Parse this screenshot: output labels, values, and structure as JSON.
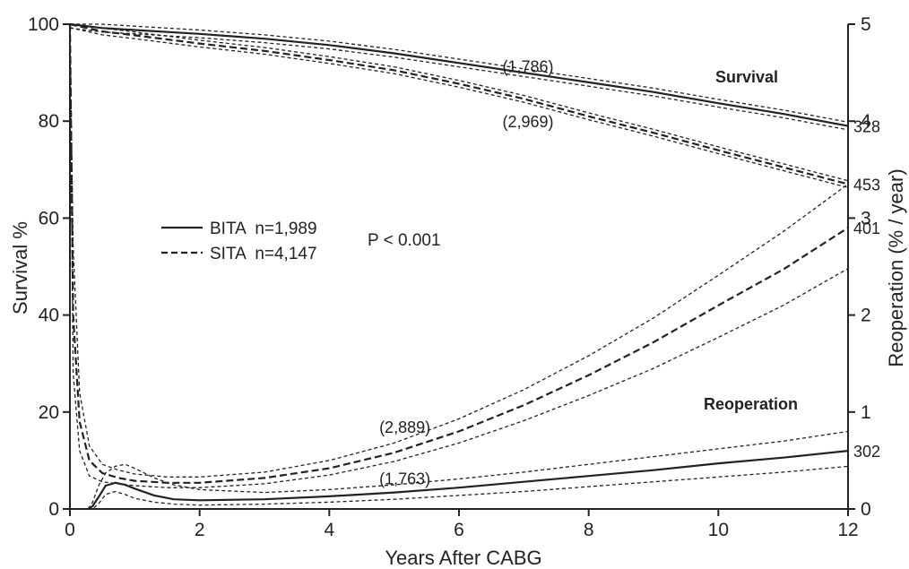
{
  "chart_data": {
    "type": "line",
    "xlabel": "Years After CABG",
    "ylabel_left": "Survival %",
    "ylabel_right": "Reoperation (% / year)",
    "xlim": [
      0,
      12
    ],
    "ylim_left": [
      0,
      100
    ],
    "ylim_right": [
      0,
      5
    ],
    "x_ticks": [
      "0",
      "2",
      "4",
      "6",
      "8",
      "10",
      "12"
    ],
    "y_left_ticks": [
      "0",
      "20",
      "40",
      "60",
      "80",
      "100"
    ],
    "y_right_ticks": [
      "0",
      "1",
      "2",
      "3",
      "4",
      "5"
    ],
    "grid": false,
    "legend": {
      "position": "center-left",
      "entries": [
        {
          "label": "BITA  n=1,989",
          "style": "solid"
        },
        {
          "label": "SITA  n=4,147",
          "style": "dashed"
        }
      ]
    },
    "p_value": "P < 0.001",
    "section_labels": {
      "survival": "Survival",
      "reoperation": "Reoperation"
    },
    "series": [
      {
        "group": "survival",
        "arm": "BITA",
        "axis": "left",
        "style": "solid",
        "x": [
          0,
          0.5,
          1,
          2,
          3,
          4,
          5,
          6,
          7,
          8,
          9,
          10,
          11,
          12
        ],
        "y": [
          100,
          99.2,
          98.8,
          98.0,
          97.0,
          95.7,
          94.0,
          92.0,
          90.0,
          88.0,
          86.0,
          83.7,
          81.5,
          79.0
        ],
        "band": 0.8,
        "n_at_risk_mid": "(1,786)",
        "n_at_risk_end": "328"
      },
      {
        "group": "survival",
        "arm": "SITA",
        "axis": "left",
        "style": "dashed",
        "x": [
          0,
          0.5,
          1,
          2,
          3,
          4,
          5,
          6,
          7,
          8,
          9,
          10,
          11,
          12
        ],
        "y": [
          100,
          98.5,
          97.7,
          96.0,
          94.5,
          92.6,
          90.5,
          87.7,
          84.6,
          81.0,
          77.6,
          74.0,
          70.5,
          67.0
        ],
        "band": 0.7,
        "n_at_risk_mid": "(2,969)",
        "n_at_risk_end": "453"
      },
      {
        "group": "reoperation",
        "arm": "SITA",
        "axis": "right",
        "style": "dashed",
        "x": [
          0,
          0.05,
          0.15,
          0.3,
          0.5,
          0.75,
          1,
          1.5,
          2,
          3,
          4,
          5,
          6,
          7,
          8,
          9,
          10,
          11,
          12
        ],
        "y": [
          5,
          2.0,
          0.9,
          0.5,
          0.37,
          0.32,
          0.29,
          0.27,
          0.27,
          0.32,
          0.42,
          0.58,
          0.8,
          1.07,
          1.38,
          1.72,
          2.1,
          2.47,
          2.9
        ],
        "lower": [
          5,
          1.4,
          0.6,
          0.34,
          0.28,
          0.26,
          0.24,
          0.22,
          0.22,
          0.26,
          0.35,
          0.49,
          0.68,
          0.91,
          1.17,
          1.45,
          1.77,
          2.1,
          2.48
        ],
        "upper": [
          5,
          2.7,
          1.2,
          0.65,
          0.46,
          0.4,
          0.36,
          0.33,
          0.33,
          0.38,
          0.5,
          0.68,
          0.93,
          1.23,
          1.58,
          1.97,
          2.41,
          2.86,
          3.35
        ],
        "n_at_risk_mid": "(2,889)",
        "n_at_risk_end": "401"
      },
      {
        "group": "reoperation",
        "arm": "BITA",
        "axis": "right",
        "style": "solid",
        "x": [
          0.28,
          0.35,
          0.45,
          0.55,
          0.7,
          0.85,
          1.0,
          1.3,
          1.6,
          2,
          3,
          4,
          5,
          6,
          7,
          8,
          9,
          10,
          11,
          12
        ],
        "y": [
          0,
          0.03,
          0.13,
          0.24,
          0.27,
          0.25,
          0.21,
          0.14,
          0.1,
          0.09,
          0.1,
          0.13,
          0.17,
          0.22,
          0.28,
          0.34,
          0.4,
          0.47,
          0.53,
          0.6
        ],
        "lower": [
          0,
          0,
          0.06,
          0.15,
          0.18,
          0.15,
          0.11,
          0.07,
          0.05,
          0.04,
          0.05,
          0.07,
          0.1,
          0.14,
          0.18,
          0.23,
          0.28,
          0.33,
          0.38,
          0.44
        ],
        "upper": [
          0,
          0.07,
          0.25,
          0.37,
          0.44,
          0.46,
          0.42,
          0.32,
          0.25,
          0.2,
          0.17,
          0.2,
          0.25,
          0.31,
          0.38,
          0.46,
          0.54,
          0.62,
          0.7,
          0.8
        ],
        "n_at_risk_mid": "(1,763)",
        "n_at_risk_end": "302"
      }
    ]
  }
}
